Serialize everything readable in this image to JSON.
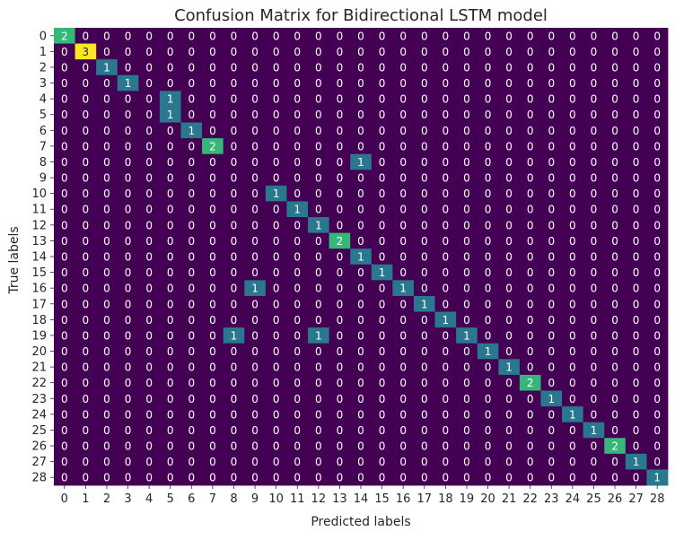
{
  "chart_data": {
    "type": "heatmap",
    "title": "Confusion Matrix for Bidirectional LSTM model",
    "xlabel": "Predicted labels",
    "ylabel": "True labels",
    "x_categories": [
      "0",
      "1",
      "2",
      "3",
      "4",
      "5",
      "6",
      "7",
      "8",
      "9",
      "10",
      "11",
      "12",
      "13",
      "14",
      "15",
      "16",
      "17",
      "18",
      "19",
      "20",
      "21",
      "22",
      "23",
      "24",
      "25",
      "26",
      "27",
      "28"
    ],
    "y_categories": [
      "0",
      "1",
      "2",
      "3",
      "4",
      "5",
      "6",
      "7",
      "8",
      "9",
      "10",
      "11",
      "12",
      "13",
      "14",
      "15",
      "16",
      "17",
      "18",
      "19",
      "20",
      "21",
      "22",
      "23",
      "24",
      "25",
      "26",
      "27",
      "28"
    ],
    "nonzero_cells": [
      {
        "row": 0,
        "col": 0,
        "value": 2
      },
      {
        "row": 1,
        "col": 1,
        "value": 3
      },
      {
        "row": 2,
        "col": 2,
        "value": 1
      },
      {
        "row": 3,
        "col": 3,
        "value": 1
      },
      {
        "row": 4,
        "col": 5,
        "value": 1
      },
      {
        "row": 5,
        "col": 5,
        "value": 1
      },
      {
        "row": 6,
        "col": 6,
        "value": 1
      },
      {
        "row": 7,
        "col": 7,
        "value": 2
      },
      {
        "row": 8,
        "col": 14,
        "value": 1
      },
      {
        "row": 10,
        "col": 10,
        "value": 1
      },
      {
        "row": 11,
        "col": 11,
        "value": 1
      },
      {
        "row": 12,
        "col": 12,
        "value": 1
      },
      {
        "row": 13,
        "col": 13,
        "value": 2
      },
      {
        "row": 14,
        "col": 14,
        "value": 1
      },
      {
        "row": 15,
        "col": 15,
        "value": 1
      },
      {
        "row": 16,
        "col": 9,
        "value": 1
      },
      {
        "row": 16,
        "col": 16,
        "value": 1
      },
      {
        "row": 17,
        "col": 17,
        "value": 1
      },
      {
        "row": 18,
        "col": 18,
        "value": 1
      },
      {
        "row": 19,
        "col": 8,
        "value": 1
      },
      {
        "row": 19,
        "col": 12,
        "value": 1
      },
      {
        "row": 19,
        "col": 19,
        "value": 1
      },
      {
        "row": 20,
        "col": 20,
        "value": 1
      },
      {
        "row": 21,
        "col": 21,
        "value": 1
      },
      {
        "row": 22,
        "col": 22,
        "value": 2
      },
      {
        "row": 23,
        "col": 23,
        "value": 1
      },
      {
        "row": 24,
        "col": 24,
        "value": 1
      },
      {
        "row": 25,
        "col": 25,
        "value": 1
      },
      {
        "row": 26,
        "col": 26,
        "value": 2
      },
      {
        "row": 27,
        "col": 27,
        "value": 1
      },
      {
        "row": 28,
        "col": 28,
        "value": 1
      }
    ],
    "value_range": [
      0,
      3
    ],
    "colormap": "viridis",
    "colors": {
      "0": "#440154",
      "1": "#2a788e",
      "2": "#35b779",
      "3": "#fde725"
    },
    "colorbar": false,
    "grid": false,
    "annotations": true
  }
}
